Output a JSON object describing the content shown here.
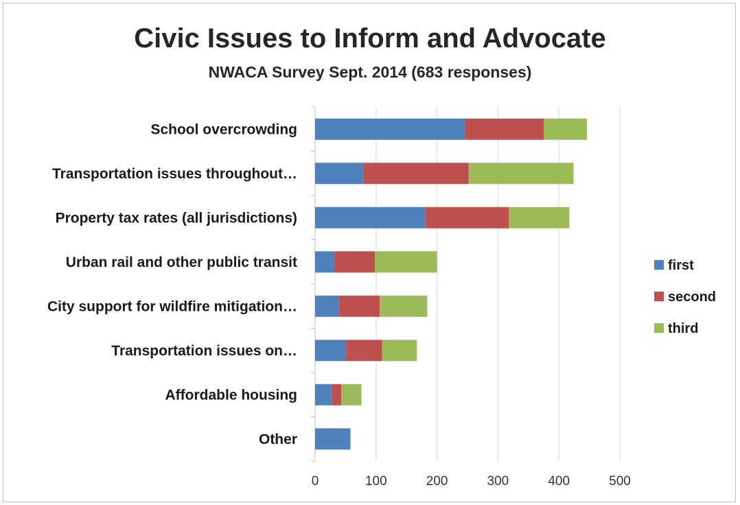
{
  "chart_data": {
    "type": "bar",
    "orientation": "horizontal",
    "stacked": true,
    "title": "Civic Issues to Inform and Advocate",
    "subtitle": "NWACA Survey Sept. 2014 (683 responses)",
    "categories": [
      "School overcrowding",
      "Transportation issues throughout…",
      "Property tax rates (all jurisdictions)",
      "Urban rail and other public transit",
      "City support for wildfire mitigation…",
      "Transportation issues on…",
      "Affordable housing",
      "Other"
    ],
    "series": [
      {
        "name": "first",
        "color": "#4F81BD",
        "values": [
          246,
          79,
          181,
          32,
          39,
          51,
          28,
          58
        ]
      },
      {
        "name": "second",
        "color": "#C0504D",
        "values": [
          129,
          173,
          137,
          66,
          67,
          59,
          15,
          0
        ]
      },
      {
        "name": "third",
        "color": "#9BBB59",
        "values": [
          71,
          172,
          99,
          102,
          78,
          57,
          33,
          0
        ]
      }
    ],
    "x_ticks": [
      "0",
      "100",
      "200",
      "300",
      "400",
      "500"
    ],
    "xlim": [
      0,
      500
    ],
    "grid": true,
    "legend_position": "right"
  }
}
